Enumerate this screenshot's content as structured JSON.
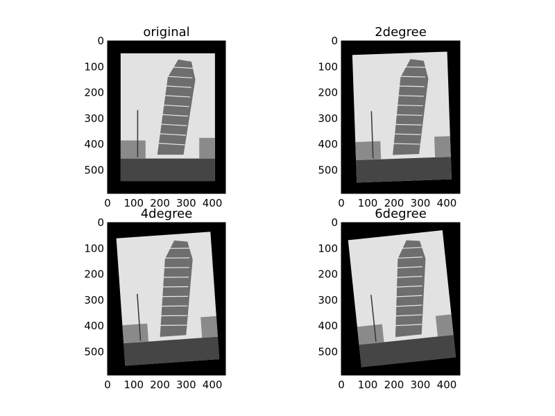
{
  "figure": {
    "background": "#ffffff",
    "frame_color": "#000000",
    "sky_color": "#e2e2e2",
    "ground_color": "#454545",
    "tower_color": "#6e6e6e"
  },
  "chart_data": [
    {
      "type": "image",
      "title": "original",
      "rotation_deg": 0,
      "xlim": [
        0,
        450
      ],
      "ylim": [
        590,
        0
      ],
      "xticks": [
        0,
        100,
        200,
        300,
        400
      ],
      "yticks": [
        0,
        100,
        200,
        300,
        400,
        500
      ],
      "xtick_labels": [
        "0",
        "100",
        "200",
        "300",
        "400"
      ],
      "ytick_labels": [
        "0",
        "100",
        "200",
        "300",
        "400",
        "500"
      ]
    },
    {
      "type": "image",
      "title": "2degree",
      "rotation_deg": 2,
      "xlim": [
        0,
        450
      ],
      "ylim": [
        590,
        0
      ],
      "xticks": [
        0,
        100,
        200,
        300,
        400
      ],
      "yticks": [
        0,
        100,
        200,
        300,
        400,
        500
      ],
      "xtick_labels": [
        "0",
        "100",
        "200",
        "300",
        "400"
      ],
      "ytick_labels": [
        "0",
        "100",
        "200",
        "300",
        "400",
        "500"
      ]
    },
    {
      "type": "image",
      "title": "4degree",
      "rotation_deg": 4,
      "xlim": [
        0,
        450
      ],
      "ylim": [
        590,
        0
      ],
      "xticks": [
        0,
        100,
        200,
        300,
        400
      ],
      "yticks": [
        0,
        100,
        200,
        300,
        400,
        500
      ],
      "xtick_labels": [
        "0",
        "100",
        "200",
        "300",
        "400"
      ],
      "ytick_labels": [
        "0",
        "100",
        "200",
        "300",
        "400",
        "500"
      ]
    },
    {
      "type": "image",
      "title": "6degree",
      "rotation_deg": 6,
      "xlim": [
        0,
        450
      ],
      "ylim": [
        590,
        0
      ],
      "xticks": [
        0,
        100,
        200,
        300,
        400
      ],
      "yticks": [
        0,
        100,
        200,
        300,
        400,
        500
      ],
      "xtick_labels": [
        "0",
        "100",
        "200",
        "300",
        "400"
      ],
      "ytick_labels": [
        "0",
        "100",
        "200",
        "300",
        "400",
        "500"
      ]
    }
  ]
}
